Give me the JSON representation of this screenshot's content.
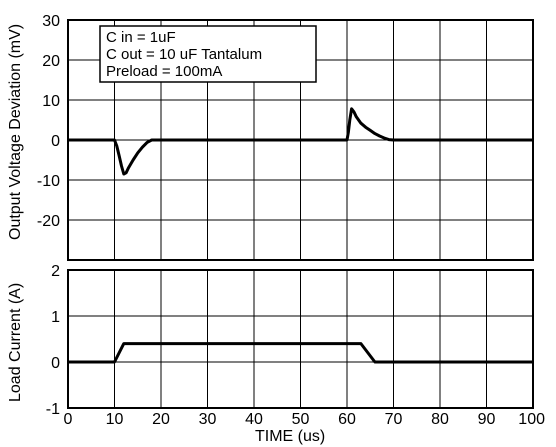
{
  "chart_data": [
    {
      "type": "line",
      "panel": "top",
      "ylabel": "Output Voltage Deviation (mV)",
      "xlim": [
        0,
        100
      ],
      "ylim": [
        -30,
        30
      ],
      "yticks": [
        "30",
        "20",
        "10",
        "0",
        "-10",
        "-20"
      ],
      "grid": true,
      "annotations": [
        "C in = 1uF",
        "C out = 10 uF  Tantalum",
        "Preload = 100mA"
      ],
      "x": [
        0,
        10,
        10.5,
        11,
        11.5,
        12,
        12.5,
        13,
        14,
        15,
        16,
        17,
        18,
        60,
        60.3,
        60.6,
        61,
        61.5,
        62,
        63,
        64,
        65,
        66,
        67,
        68,
        69,
        70,
        100
      ],
      "y": [
        0,
        0,
        -1.5,
        -4,
        -6.5,
        -8.5,
        -8.2,
        -7,
        -5,
        -3.2,
        -1.8,
        -0.6,
        0,
        0,
        2,
        5,
        7.8,
        7,
        5.8,
        4.2,
        3.2,
        2.4,
        1.6,
        1,
        0.5,
        0.1,
        0,
        0
      ]
    },
    {
      "type": "line",
      "panel": "bottom",
      "ylabel": "Load Current (A)",
      "xlabel": "TIME (us)",
      "xlim": [
        0,
        100
      ],
      "ylim": [
        -1,
        2
      ],
      "xticks": [
        "0",
        "10",
        "20",
        "30",
        "40",
        "50",
        "60",
        "70",
        "80",
        "90",
        "100"
      ],
      "yticks": [
        "2",
        "1",
        "0",
        "-1"
      ],
      "grid": true,
      "x": [
        0,
        10,
        12,
        63,
        66,
        100
      ],
      "y": [
        0,
        0,
        0.4,
        0.4,
        0,
        0
      ]
    }
  ]
}
